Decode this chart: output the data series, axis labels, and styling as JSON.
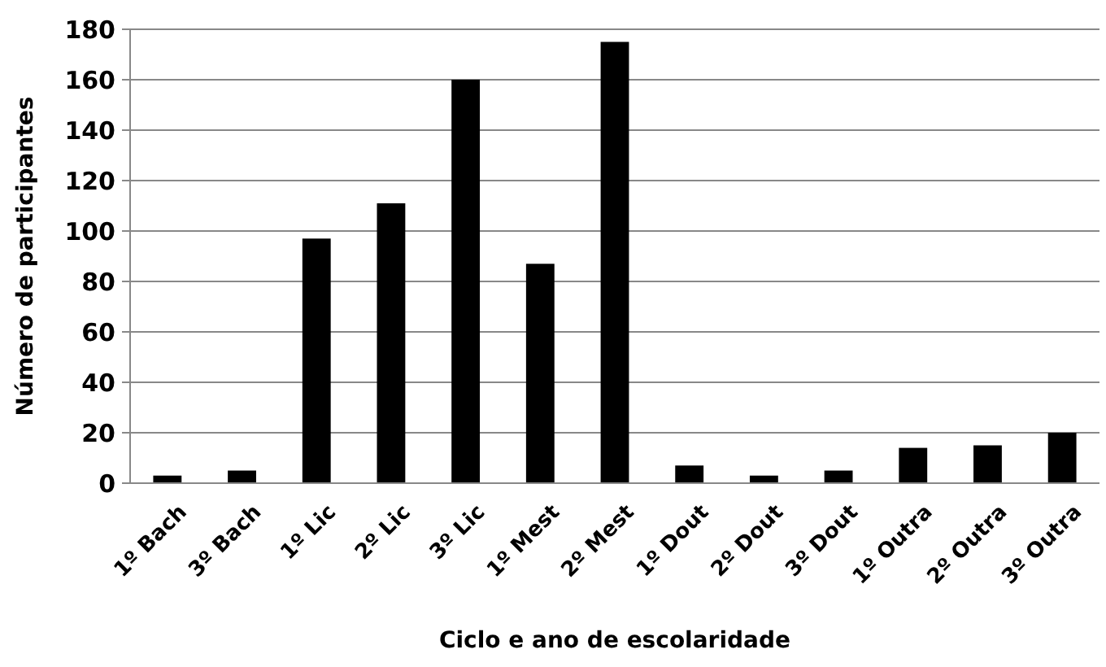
{
  "chart_data": {
    "type": "bar",
    "xlabel": "Ciclo e ano de escolaridade",
    "ylabel": "Número de participantes",
    "categories": [
      "1º Bach",
      "3º Bach",
      "1º Lic",
      "2º Lic",
      "3º Lic",
      "1º Mest",
      "2º Mest",
      "1º Dout",
      "2º Dout",
      "3º Dout",
      "1º Outra",
      "2º Outra",
      "3º Outra"
    ],
    "values": [
      3,
      5,
      97,
      111,
      160,
      87,
      175,
      7,
      3,
      5,
      14,
      15,
      20
    ],
    "color": "#000000",
    "ylim": [
      0,
      180
    ],
    "yticks": [
      0,
      20,
      40,
      60,
      80,
      100,
      120,
      140,
      160,
      180
    ],
    "grid": "y"
  }
}
